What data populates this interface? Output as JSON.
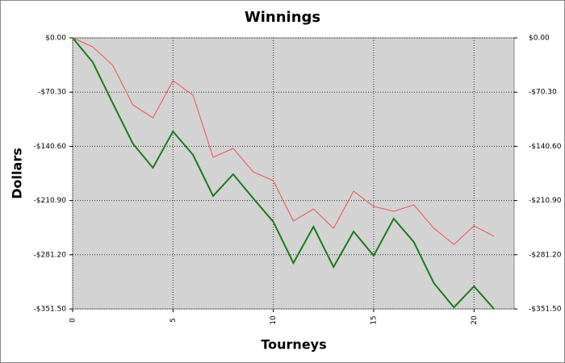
{
  "chart_data": {
    "type": "line",
    "title": "Winnings",
    "xlabel": "Tourneys",
    "ylabel": "Dollars",
    "x": [
      0,
      1,
      2,
      3,
      4,
      5,
      6,
      7,
      8,
      9,
      10,
      11,
      12,
      13,
      14,
      15,
      16,
      17,
      18,
      19,
      20,
      21
    ],
    "series": [
      {
        "color": "#f05050",
        "width": 1,
        "values": [
          0,
          -11.5,
          -35.6,
          -86.8,
          -103.6,
          -55.4,
          -74.3,
          -154.8,
          -143.3,
          -173.7,
          -185.2,
          -237.5,
          -221.8,
          -246.9,
          -198.8,
          -218.6,
          -224.9,
          -216.5,
          -246.9,
          -267.8,
          -243.7,
          -257.3
        ]
      },
      {
        "color": "#1a7a1a",
        "width": 2,
        "values": [
          0,
          -31.4,
          -84.7,
          -137,
          -168.4,
          -121.3,
          -151.7,
          -205,
          -176.8,
          -208.2,
          -238.5,
          -291.9,
          -244.8,
          -297.1,
          -251.1,
          -282.4,
          -234.3,
          -264.7,
          -318,
          -349.4,
          -322.2,
          -351.5
        ]
      }
    ],
    "xlim": [
      0,
      22
    ],
    "xticks": [
      0,
      5,
      10,
      15,
      20
    ],
    "ylim": [
      -351.5,
      0
    ],
    "yticks": [
      {
        "value": 0,
        "label": "$0.00"
      },
      {
        "value": -70.3,
        "label": "-$70.30"
      },
      {
        "value": -140.6,
        "label": "-$140.60"
      },
      {
        "value": -210.9,
        "label": "-$210.90"
      },
      {
        "value": -281.2,
        "label": "-$281.20"
      },
      {
        "value": -351.5,
        "label": "-$351.50"
      }
    ],
    "grid": true
  }
}
